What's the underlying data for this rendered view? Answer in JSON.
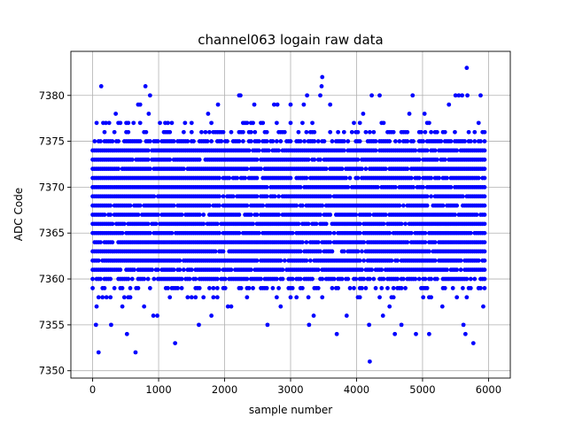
{
  "chart_data": {
    "type": "scatter",
    "title": "channel063 logain raw data",
    "xlabel": "sample number",
    "ylabel": "ADC Code",
    "xlim": [
      -330,
      6330
    ],
    "ylim": [
      7349.2,
      7384.8
    ],
    "xticks": [
      0,
      1000,
      2000,
      3000,
      4000,
      5000,
      6000
    ],
    "yticks": [
      7350,
      7355,
      7360,
      7365,
      7370,
      7375,
      7380
    ],
    "grid": true,
    "marker": "circle",
    "point_color": "#0000ff",
    "series": [
      {
        "name": "",
        "dense_band": {
          "x_range": [
            0,
            5950
          ],
          "x_step": 30,
          "levels": [
            7361,
            7362,
            7363,
            7364,
            7365,
            7366,
            7367,
            7368,
            7369,
            7370,
            7371,
            7372,
            7373,
            7374
          ],
          "edge_levels": [
            7358,
            7359,
            7360,
            7375,
            7376,
            7377
          ]
        },
        "outliers": [
          {
            "x": 50,
            "y": 7355
          },
          {
            "x": 60,
            "y": 7357
          },
          {
            "x": 90,
            "y": 7352
          },
          {
            "x": 130,
            "y": 7381
          },
          {
            "x": 160,
            "y": 7377
          },
          {
            "x": 200,
            "y": 7377
          },
          {
            "x": 250,
            "y": 7377
          },
          {
            "x": 280,
            "y": 7355
          },
          {
            "x": 350,
            "y": 7378
          },
          {
            "x": 420,
            "y": 7377
          },
          {
            "x": 450,
            "y": 7357
          },
          {
            "x": 520,
            "y": 7354
          },
          {
            "x": 620,
            "y": 7377
          },
          {
            "x": 650,
            "y": 7352
          },
          {
            "x": 690,
            "y": 7379
          },
          {
            "x": 720,
            "y": 7379
          },
          {
            "x": 780,
            "y": 7357
          },
          {
            "x": 800,
            "y": 7381
          },
          {
            "x": 850,
            "y": 7378
          },
          {
            "x": 870,
            "y": 7380
          },
          {
            "x": 920,
            "y": 7356
          },
          {
            "x": 980,
            "y": 7356
          },
          {
            "x": 1100,
            "y": 7377
          },
          {
            "x": 1250,
            "y": 7353
          },
          {
            "x": 1400,
            "y": 7377
          },
          {
            "x": 1610,
            "y": 7355
          },
          {
            "x": 1750,
            "y": 7378
          },
          {
            "x": 1800,
            "y": 7356
          },
          {
            "x": 1900,
            "y": 7379
          },
          {
            "x": 2050,
            "y": 7357
          },
          {
            "x": 2100,
            "y": 7357
          },
          {
            "x": 2220,
            "y": 7380
          },
          {
            "x": 2240,
            "y": 7380
          },
          {
            "x": 2450,
            "y": 7379
          },
          {
            "x": 2650,
            "y": 7355
          },
          {
            "x": 2750,
            "y": 7379
          },
          {
            "x": 2800,
            "y": 7379
          },
          {
            "x": 2850,
            "y": 7357
          },
          {
            "x": 3000,
            "y": 7379
          },
          {
            "x": 3200,
            "y": 7379
          },
          {
            "x": 3250,
            "y": 7380
          },
          {
            "x": 3280,
            "y": 7355
          },
          {
            "x": 3350,
            "y": 7356
          },
          {
            "x": 3450,
            "y": 7380
          },
          {
            "x": 3470,
            "y": 7381
          },
          {
            "x": 3480,
            "y": 7382
          },
          {
            "x": 3600,
            "y": 7379
          },
          {
            "x": 3700,
            "y": 7354
          },
          {
            "x": 3850,
            "y": 7356
          },
          {
            "x": 4100,
            "y": 7378
          },
          {
            "x": 4190,
            "y": 7355
          },
          {
            "x": 4200,
            "y": 7351
          },
          {
            "x": 4230,
            "y": 7380
          },
          {
            "x": 4350,
            "y": 7380
          },
          {
            "x": 4400,
            "y": 7356
          },
          {
            "x": 4500,
            "y": 7357
          },
          {
            "x": 4580,
            "y": 7354
          },
          {
            "x": 4680,
            "y": 7355
          },
          {
            "x": 4800,
            "y": 7378
          },
          {
            "x": 4850,
            "y": 7380
          },
          {
            "x": 4900,
            "y": 7354
          },
          {
            "x": 5030,
            "y": 7378
          },
          {
            "x": 5100,
            "y": 7354
          },
          {
            "x": 5300,
            "y": 7357
          },
          {
            "x": 5400,
            "y": 7379
          },
          {
            "x": 5500,
            "y": 7380
          },
          {
            "x": 5550,
            "y": 7380
          },
          {
            "x": 5600,
            "y": 7380
          },
          {
            "x": 5620,
            "y": 7355
          },
          {
            "x": 5650,
            "y": 7354
          },
          {
            "x": 5670,
            "y": 7383
          },
          {
            "x": 5680,
            "y": 7380
          },
          {
            "x": 5770,
            "y": 7353
          },
          {
            "x": 5850,
            "y": 7359
          },
          {
            "x": 5880,
            "y": 7380
          },
          {
            "x": 5920,
            "y": 7357
          }
        ]
      }
    ]
  }
}
